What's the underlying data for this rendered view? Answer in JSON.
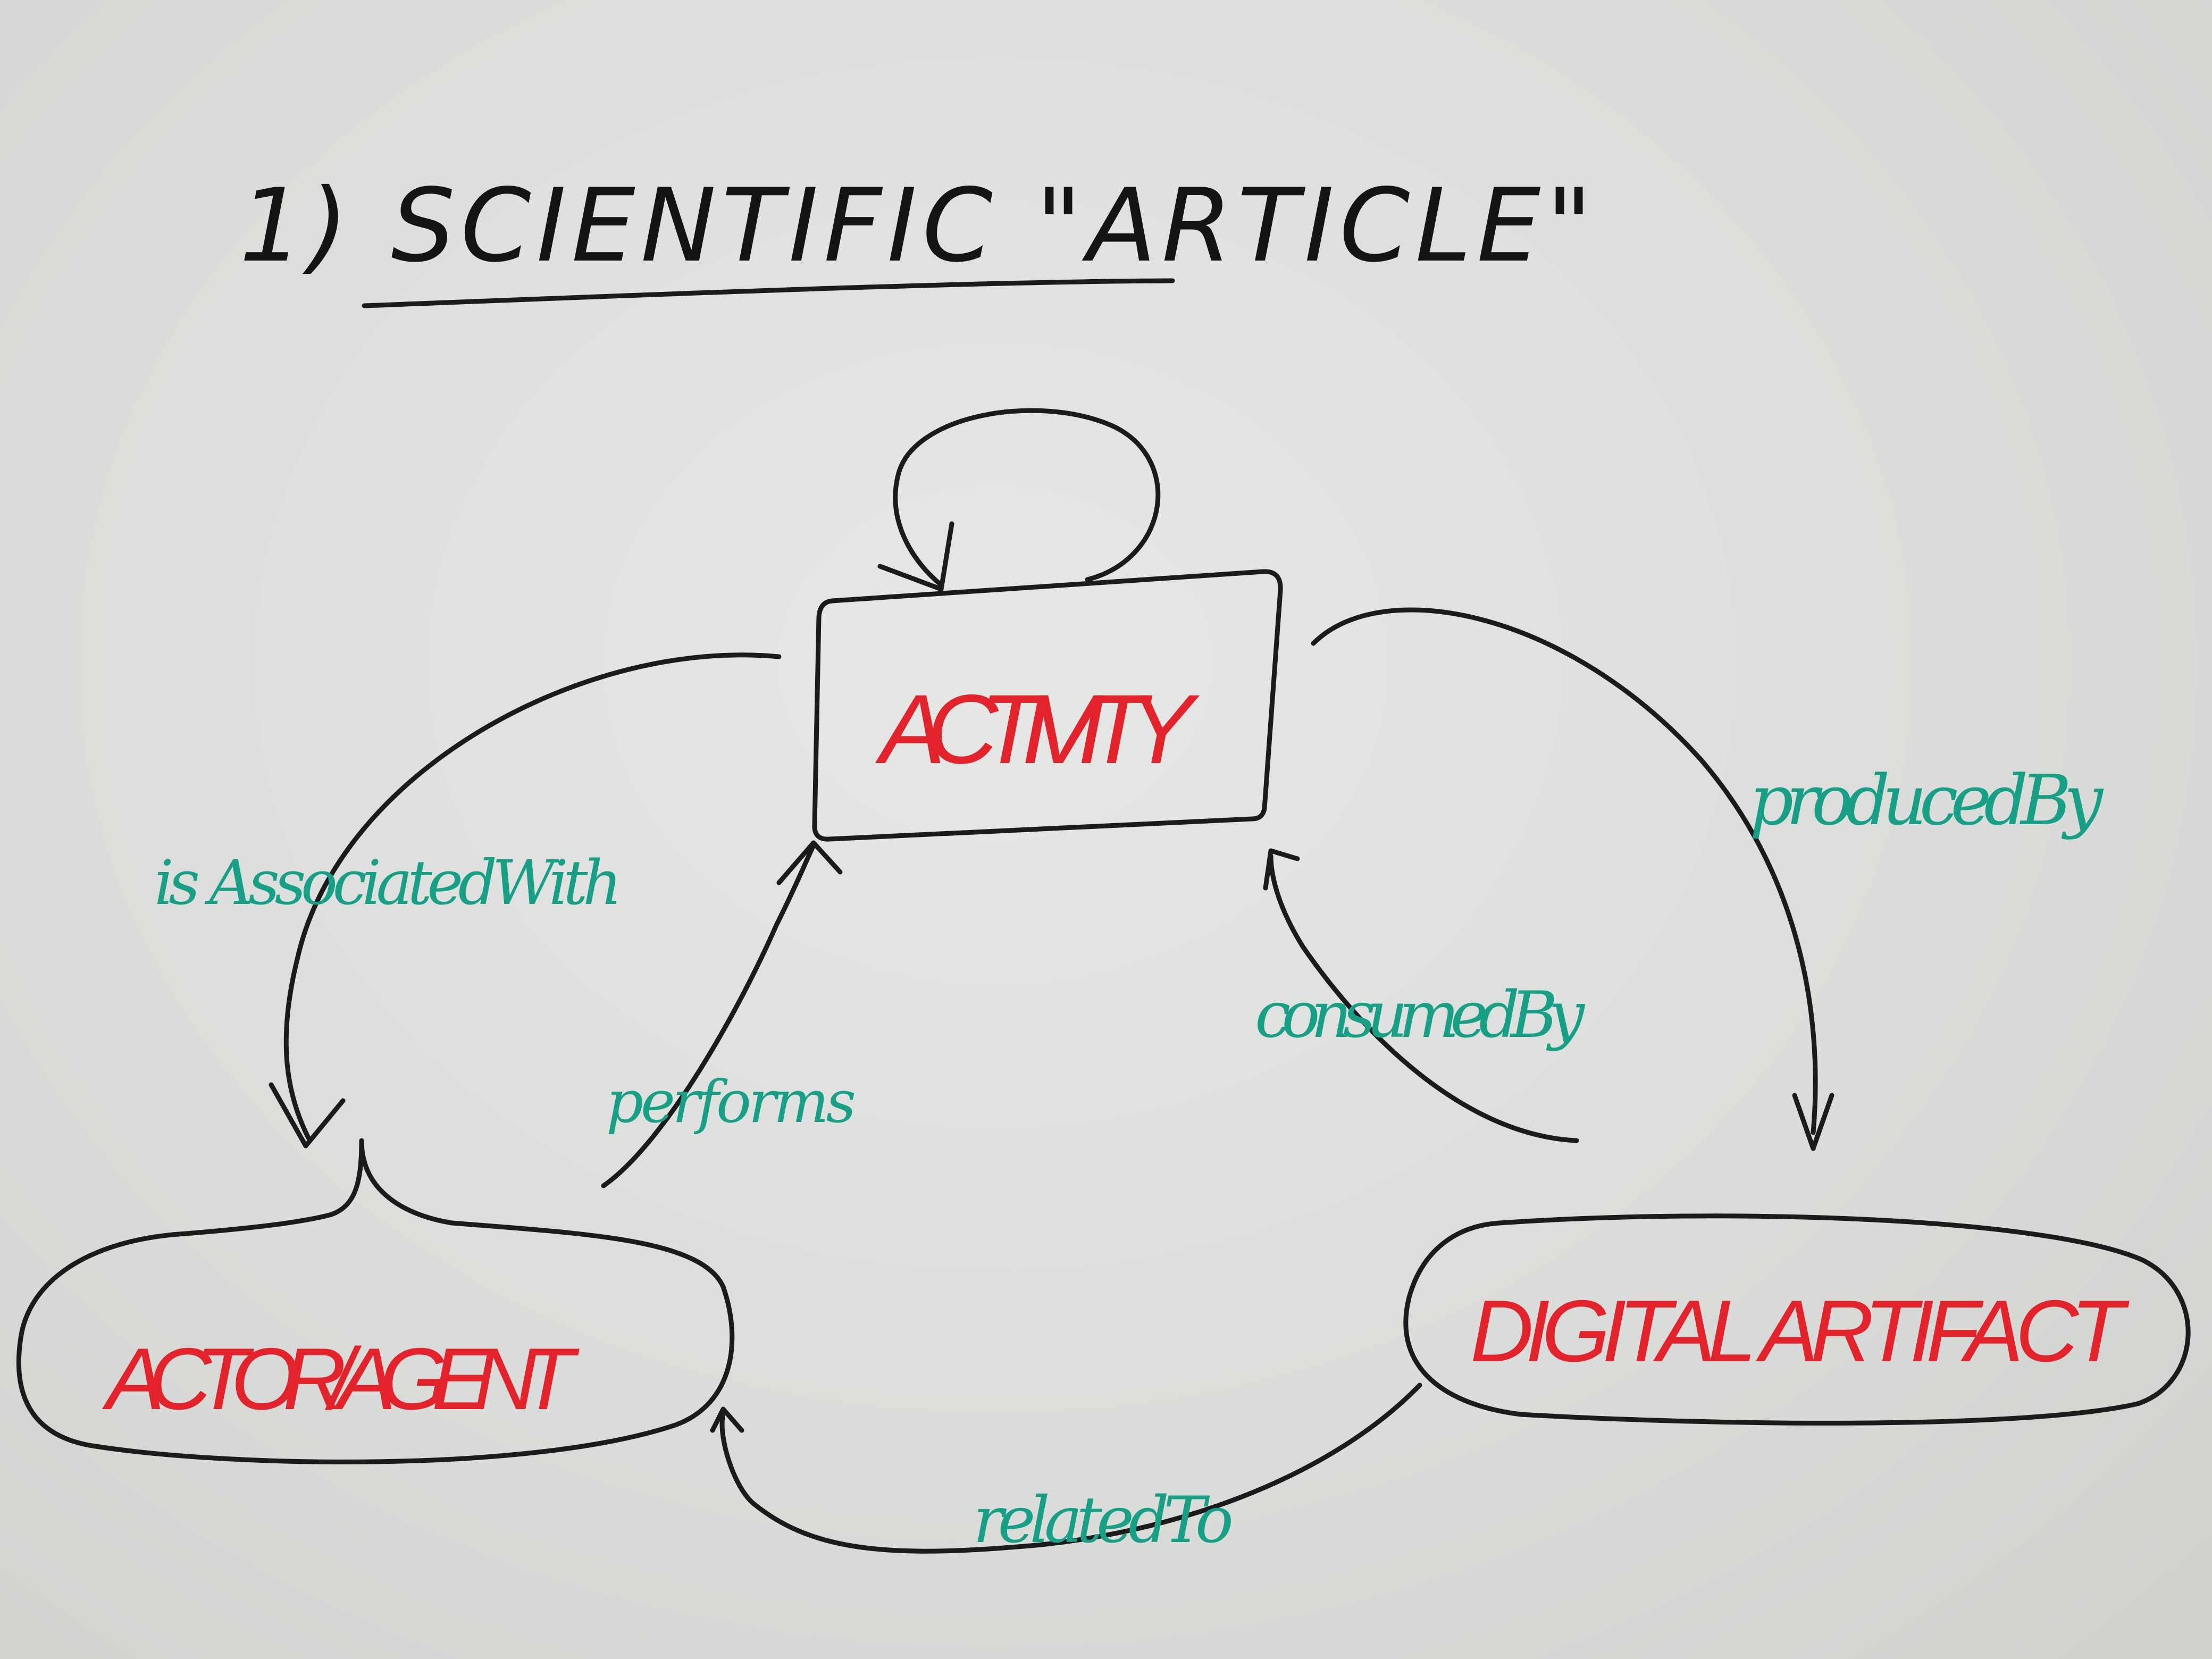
{
  "title": "1) SCIENTIFIC \"ARTICLE\"",
  "nodes": {
    "activity": "ACTIVITY",
    "actor": "ACTOR/AGENT",
    "artifact": "DIGITAL ARTIFACT"
  },
  "edges": {
    "associated": "is AssociatedWith",
    "performs": "performs",
    "produced": "producedBy",
    "consumed": "consumedBy",
    "related": "relatedTo"
  },
  "colors": {
    "board": "#dcdedd",
    "ink": "#1b1b1b",
    "node_text": "#e3232c",
    "edge_text": "#17a086"
  }
}
